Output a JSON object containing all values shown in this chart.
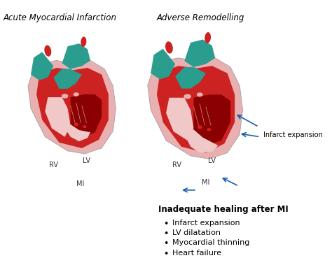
{
  "title_left": "Acute Myocardial Infarction",
  "title_right": "Adverse Remodelling",
  "label_rv": "RV",
  "label_lv": "LV",
  "label_mi": "MI",
  "label_infarct_expansion": "Infarct expansion",
  "section_title": "Inadequate healing after MI",
  "bullet_points": [
    "Infarct expansion",
    "LV dilatation",
    "Myocardial thinning",
    "Heart failure"
  ],
  "bg_color": "#ffffff",
  "text_color": "#000000",
  "arrow_color": "#1a5fa8",
  "heart_red": "#cc2222",
  "heart_pink": "#e8b0b0",
  "heart_teal": "#2a9d8f",
  "heart_dark_red": "#8b0000",
  "heart_light_pink": "#f0c8c8",
  "heart_dark_pink": "#c06060"
}
